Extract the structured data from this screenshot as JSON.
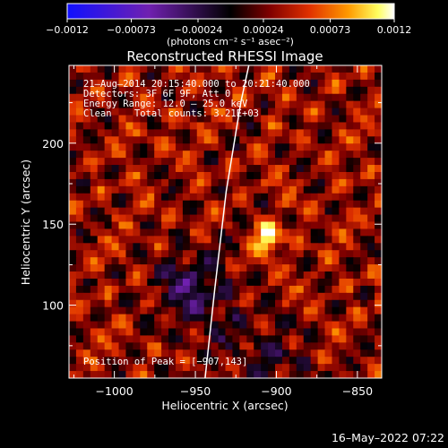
{
  "chart_data": {
    "type": "heatmap",
    "title": "Reconstructed RHESSI Image",
    "xlabel": "Heliocentric X (arcsec)",
    "ylabel": "Heliocentric Y (arcsec)",
    "xlim": [
      -1028,
      -835
    ],
    "ylim": [
      55,
      248
    ],
    "x_ticks": [
      -1000,
      -950,
      -900,
      -850
    ],
    "x_tick_labels": [
      "−1000",
      "−950",
      "−900",
      "−850"
    ],
    "y_ticks": [
      100,
      150,
      200
    ],
    "y_tick_labels": [
      "100",
      "150",
      "200"
    ],
    "colorbar": {
      "min": -0.0012,
      "max": 0.0012,
      "ticks": [
        -0.0012,
        -0.00073,
        -0.00024,
        0.00024,
        0.00073,
        0.0012
      ],
      "tick_labels": [
        "−0.0012",
        "−0.00073",
        "−0.00024",
        "0.00024",
        "0.00073",
        "0.0012"
      ],
      "unit_label": "(photons cm⁻² s⁻¹ asec⁻²)",
      "colors": [
        "#1010ff",
        "#7020b0",
        "#000000",
        "#800000",
        "#e03000",
        "#ff9a00",
        "#ffff60",
        "#ffffff"
      ]
    },
    "annotations": {
      "time_range": "21–Aug–2014 20:15:40.000 to 20:21:40.000",
      "detectors": "Detectors: 3F 6F 9F, Att 0",
      "energy_range": "Energy Range: 12.0 – 25.0 keV",
      "method": "Clean    Total counts: 3.21E+03",
      "peak": "Position of Peak = [−907,143]"
    },
    "peak": {
      "x": -907,
      "y": 143
    },
    "limb": [
      [
        -944,
        55
      ],
      [
        -938,
        110
      ],
      [
        -931,
        170
      ],
      [
        -922,
        225
      ],
      [
        -917,
        248
      ]
    ],
    "grid": false
  },
  "footer": {
    "timestamp": "16–May–2022 07:22"
  }
}
